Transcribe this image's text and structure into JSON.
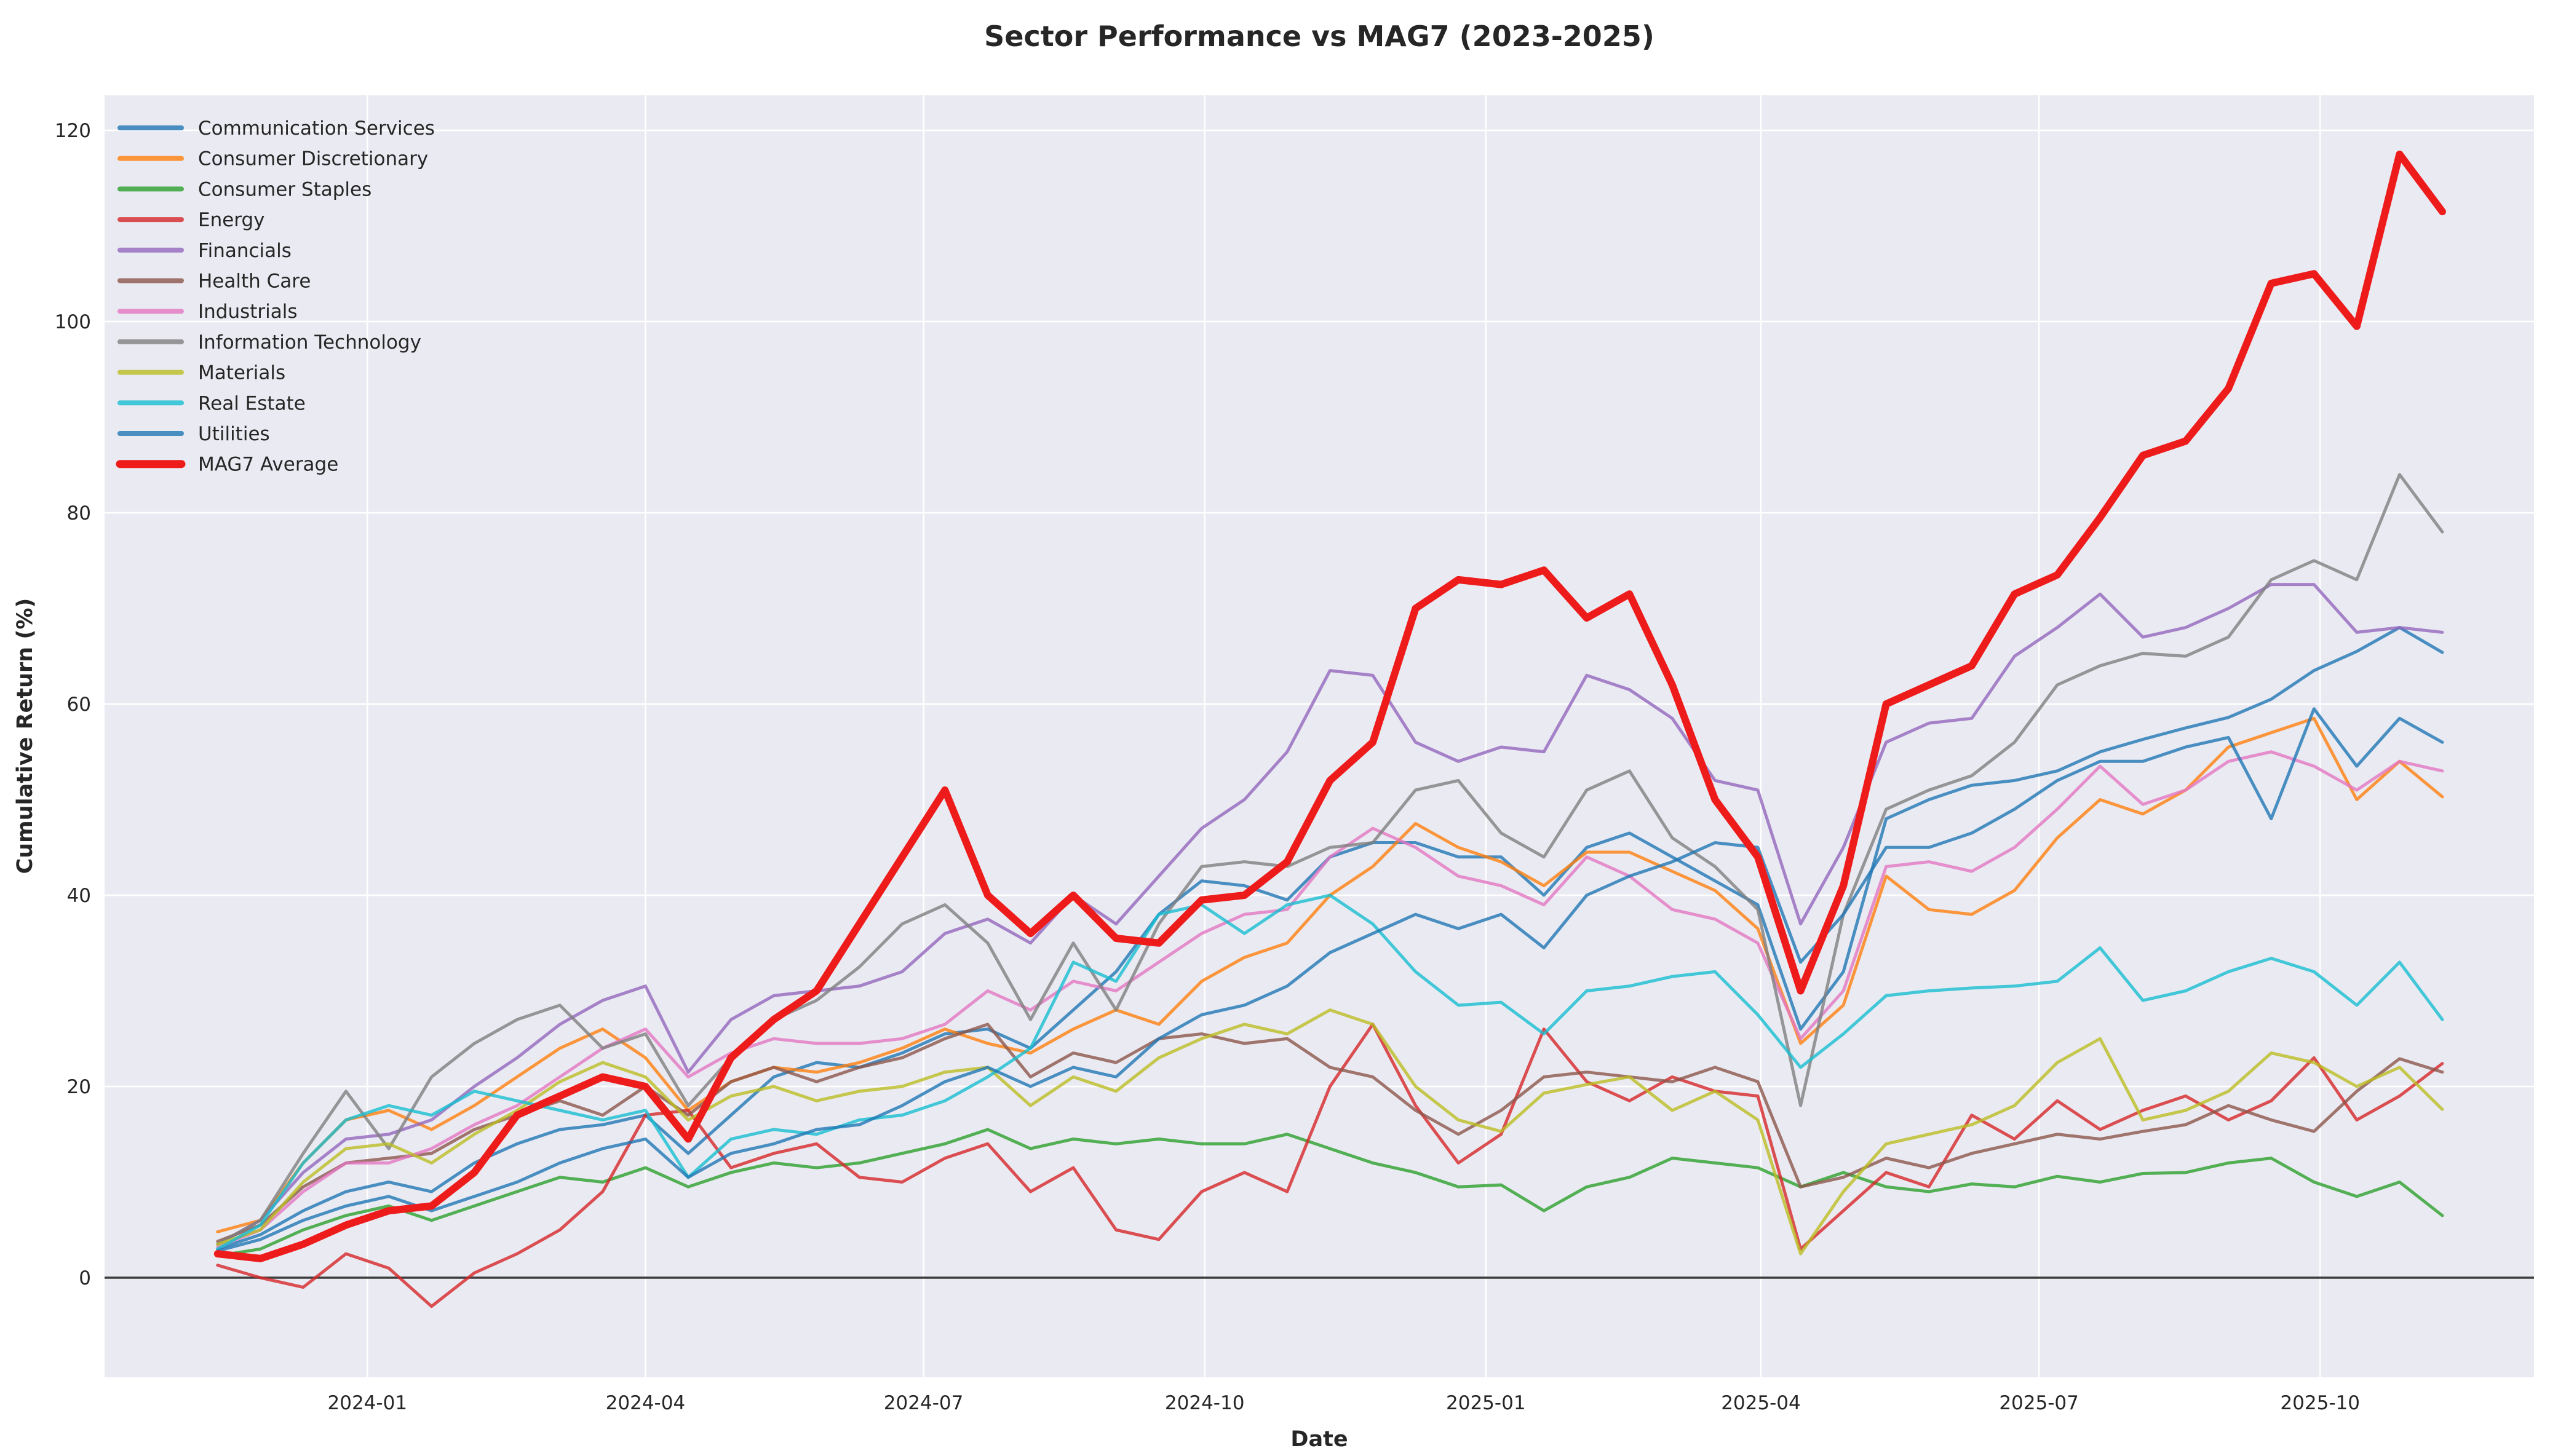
{
  "figure": {
    "title": "Sector Performance vs MAG7 (2023-2025)",
    "xlabel": "Date",
    "ylabel": "Cumulative Return (%)",
    "background_color": "#ffffff",
    "plot_background_color": "#eaeaf2",
    "grid_color": "#ffffff",
    "zero_line_color": "#3d3d3d",
    "text_color": "#262626"
  },
  "chart_data": {
    "type": "line",
    "title": "Sector Performance vs MAG7 (2023-2025)",
    "xlabel": "Date",
    "ylabel": "Cumulative Return (%)",
    "ylim": [
      -10.4,
      123.7
    ],
    "grid": true,
    "legend_position": "upper left",
    "yticks": [
      0,
      20,
      40,
      60,
      80,
      100,
      120
    ],
    "xticks": [
      {
        "label": "2024-01",
        "date": "2024-01-01"
      },
      {
        "label": "2024-04",
        "date": "2024-04-01"
      },
      {
        "label": "2024-07",
        "date": "2024-07-01"
      },
      {
        "label": "2024-10",
        "date": "2024-10-01"
      },
      {
        "label": "2025-01",
        "date": "2025-01-01"
      },
      {
        "label": "2025-04",
        "date": "2025-04-01"
      },
      {
        "label": "2025-07",
        "date": "2025-07-01"
      },
      {
        "label": "2025-10",
        "date": "2025-10-01"
      }
    ],
    "x_dates": [
      "2023-11-13",
      "2023-11-27",
      "2023-12-11",
      "2023-12-25",
      "2024-01-08",
      "2024-01-22",
      "2024-02-05",
      "2024-02-19",
      "2024-03-04",
      "2024-03-18",
      "2024-04-01",
      "2024-04-15",
      "2024-04-29",
      "2024-05-13",
      "2024-05-27",
      "2024-06-10",
      "2024-06-24",
      "2024-07-08",
      "2024-07-22",
      "2024-08-05",
      "2024-08-19",
      "2024-09-02",
      "2024-09-16",
      "2024-09-30",
      "2024-10-14",
      "2024-10-28",
      "2024-11-11",
      "2024-11-25",
      "2024-12-09",
      "2024-12-23",
      "2025-01-06",
      "2025-01-20",
      "2025-02-03",
      "2025-02-17",
      "2025-03-03",
      "2025-03-17",
      "2025-03-31",
      "2025-04-14",
      "2025-04-28",
      "2025-05-12",
      "2025-05-26",
      "2025-06-09",
      "2025-06-23",
      "2025-07-07",
      "2025-07-21",
      "2025-08-04",
      "2025-08-18",
      "2025-09-01",
      "2025-09-15",
      "2025-09-29",
      "2025-10-13",
      "2025-10-27",
      "2025-11-10"
    ],
    "series": [
      {
        "name": "Communication Services",
        "color": "#1f77b4",
        "opacity": 0.8,
        "line_width": 5,
        "values": [
          3,
          4.5,
          7,
          9,
          10,
          9,
          12,
          14,
          15.5,
          16,
          17,
          13,
          17,
          21,
          22.5,
          22,
          23.5,
          25.5,
          26,
          24,
          28,
          32,
          38,
          41.5,
          41,
          39.5,
          44,
          45.5,
          45.5,
          44,
          44,
          40,
          45,
          46.5,
          44,
          41.5,
          39,
          26,
          32,
          48,
          50,
          51.5,
          52,
          53,
          55,
          56.3,
          57.5,
          58.6,
          60.5,
          63.5,
          65.5,
          68,
          65.4
        ]
      },
      {
        "name": "Consumer Discretionary",
        "color": "#ff7f0e",
        "opacity": 0.8,
        "line_width": 5,
        "values": [
          4.8,
          6,
          12,
          16.5,
          17.5,
          15.5,
          18,
          21,
          24,
          26,
          23,
          17.5,
          20.5,
          22,
          21.5,
          22.5,
          24,
          26,
          24.5,
          23.5,
          26,
          28,
          26.5,
          31,
          33.5,
          35,
          40,
          43,
          47.5,
          45,
          43.5,
          41,
          44.5,
          44.5,
          42.5,
          40.5,
          36.5,
          24.5,
          28.5,
          42,
          38.5,
          38,
          40.5,
          46,
          50,
          48.5,
          51,
          55.5,
          57,
          58.5,
          50,
          54,
          50.3
        ]
      },
      {
        "name": "Consumer Staples",
        "color": "#2ca02c",
        "opacity": 0.8,
        "line_width": 5,
        "values": [
          2.3,
          3,
          5,
          6.5,
          7.5,
          6,
          7.5,
          9,
          10.5,
          10,
          11.5,
          9.5,
          11,
          12,
          11.5,
          12,
          13,
          14,
          15.5,
          13.5,
          14.5,
          14,
          14.5,
          14,
          14,
          15,
          13.5,
          12,
          11,
          9.5,
          9.7,
          7,
          9.5,
          10.5,
          12.5,
          12,
          11.5,
          9.5,
          11,
          9.5,
          9,
          9.8,
          9.5,
          10.6,
          10,
          10.9,
          11,
          12,
          12.5,
          10,
          8.5,
          10,
          6.5
        ]
      },
      {
        "name": "Energy",
        "color": "#d62728",
        "opacity": 0.8,
        "line_width": 5,
        "values": [
          1.3,
          0,
          -1,
          2.5,
          1,
          -3,
          0.5,
          2.5,
          5,
          9,
          17,
          17.5,
          11.5,
          13,
          14,
          10.5,
          10,
          12.5,
          14,
          9,
          11.5,
          5,
          4,
          9,
          11,
          9,
          20,
          26.5,
          18,
          12,
          15,
          26,
          20.5,
          18.5,
          21,
          19.5,
          19,
          3,
          7,
          11,
          9.5,
          17,
          14.5,
          18.5,
          15.5,
          17.5,
          19,
          16.5,
          18.5,
          23,
          16.5,
          19,
          22.4
        ]
      },
      {
        "name": "Financials",
        "color": "#9467bd",
        "opacity": 0.8,
        "line_width": 5,
        "values": [
          3.5,
          6,
          11,
          14.5,
          15,
          16.5,
          20,
          23,
          26.5,
          29,
          30.5,
          21.5,
          27,
          29.5,
          30,
          30.5,
          32,
          36,
          37.5,
          35,
          40,
          37,
          42,
          47,
          50,
          55,
          63.5,
          63,
          56,
          54,
          55.5,
          55,
          63,
          61.5,
          58.5,
          52,
          51,
          37,
          45,
          56,
          58,
          58.5,
          65,
          68,
          71.5,
          67,
          68,
          70,
          72.5,
          72.5,
          67.5,
          68,
          67.5
        ]
      },
      {
        "name": "Health Care",
        "color": "#8c564b",
        "opacity": 0.8,
        "line_width": 5,
        "values": [
          3.8,
          5.5,
          9.5,
          12,
          12.5,
          13,
          15.5,
          17,
          18.5,
          17,
          20,
          17,
          20.5,
          22,
          20.5,
          22,
          23,
          25,
          26.5,
          21,
          23.5,
          22.5,
          25,
          25.5,
          24.5,
          25,
          22,
          21,
          17.5,
          15,
          17.5,
          21,
          21.5,
          21,
          20.5,
          22,
          20.5,
          9.5,
          10.5,
          12.5,
          11.5,
          13,
          14,
          15,
          14.5,
          15.3,
          16,
          18,
          16.5,
          15.3,
          19.5,
          22.9,
          21.5
        ]
      },
      {
        "name": "Industrials",
        "color": "#e377c2",
        "opacity": 0.8,
        "line_width": 5,
        "values": [
          3.2,
          5,
          9,
          12,
          12,
          13.5,
          16,
          18,
          21,
          24,
          26,
          21,
          23.5,
          25,
          24.5,
          24.5,
          25,
          26.5,
          30,
          28,
          31,
          30,
          33,
          36,
          38,
          38.5,
          44,
          47,
          45,
          42,
          41,
          39,
          44,
          42,
          38.5,
          37.5,
          35,
          25,
          30,
          43,
          43.5,
          42.5,
          45,
          49,
          53.5,
          49.5,
          51,
          54,
          55,
          53.5,
          51,
          54,
          53
        ]
      },
      {
        "name": "Information Technology",
        "color": "#7f7f7f",
        "opacity": 0.8,
        "line_width": 5,
        "values": [
          3.5,
          6,
          13,
          19.5,
          13.5,
          21,
          24.5,
          27,
          28.5,
          24,
          25.5,
          18,
          23,
          27,
          29,
          32.5,
          37,
          39,
          35,
          27,
          35,
          28,
          37,
          43,
          43.5,
          43,
          45,
          45.5,
          51,
          52,
          46.5,
          44,
          51,
          53,
          46,
          43,
          38.5,
          18,
          38,
          49,
          51,
          52.5,
          56,
          62,
          64,
          65.3,
          65,
          67,
          73,
          75,
          73,
          84,
          78
        ]
      },
      {
        "name": "Materials",
        "color": "#bcbd22",
        "opacity": 0.8,
        "line_width": 5,
        "values": [
          3.5,
          5,
          10,
          13.5,
          14,
          12,
          15,
          17.5,
          20.5,
          22.5,
          21,
          16.5,
          19,
          20,
          18.5,
          19.5,
          20,
          21.5,
          22,
          18,
          21,
          19.5,
          23,
          25,
          26.5,
          25.5,
          28,
          26.5,
          20,
          16.5,
          15.3,
          19.3,
          20.2,
          21,
          17.5,
          19.5,
          16.5,
          2.5,
          9,
          14,
          15,
          16,
          18,
          22.5,
          25,
          16.5,
          17.5,
          19.5,
          23.5,
          22.5,
          20,
          22,
          17.6
        ]
      },
      {
        "name": "Real Estate",
        "color": "#17becf",
        "opacity": 0.8,
        "line_width": 5,
        "values": [
          3,
          5.5,
          12,
          16.5,
          18,
          17,
          19.5,
          18.5,
          17.5,
          16.5,
          17.5,
          10.5,
          14.5,
          15.5,
          15,
          16.5,
          17,
          18.5,
          21,
          24,
          33,
          31,
          38,
          39,
          36,
          39,
          40,
          37,
          32,
          28.5,
          28.8,
          25.5,
          30,
          30.5,
          31.5,
          32,
          27.5,
          22,
          25.5,
          29.5,
          30,
          30.3,
          30.5,
          31,
          34.5,
          29,
          30,
          32,
          33.4,
          32,
          28.5,
          33,
          27
        ]
      },
      {
        "name": "Utilities",
        "color": "#1f77b4",
        "opacity": 0.8,
        "line_width": 5,
        "values": [
          2.8,
          4,
          6,
          7.5,
          8.5,
          7,
          8.5,
          10,
          12,
          13.5,
          14.5,
          10.5,
          13,
          14,
          15.5,
          16,
          18,
          20.5,
          22,
          20,
          22,
          21,
          25,
          27.5,
          28.5,
          30.5,
          34,
          36,
          38,
          36.5,
          38,
          34.5,
          40,
          42,
          43.5,
          45.5,
          45,
          33,
          38,
          45,
          45,
          46.5,
          49,
          52,
          54,
          54,
          55.5,
          56.5,
          48,
          59.5,
          53.5,
          58.5,
          56
        ]
      },
      {
        "name": "MAG7 Average",
        "color": "#ee1b1b",
        "opacity": 1.0,
        "line_width": 12,
        "values": [
          2.5,
          2,
          3.5,
          5.5,
          7,
          7.5,
          11,
          17,
          19,
          21,
          20,
          14.5,
          23,
          27,
          30,
          37,
          44,
          51,
          40,
          36,
          40,
          35.5,
          35,
          39.5,
          40,
          43.5,
          52,
          56,
          70,
          73,
          72.5,
          74,
          69,
          71.5,
          62,
          50,
          44,
          30,
          41,
          60,
          62,
          64,
          71.5,
          73.5,
          79.5,
          86,
          87.5,
          93,
          104,
          105,
          99.5,
          117.5,
          111.5
        ]
      }
    ]
  }
}
